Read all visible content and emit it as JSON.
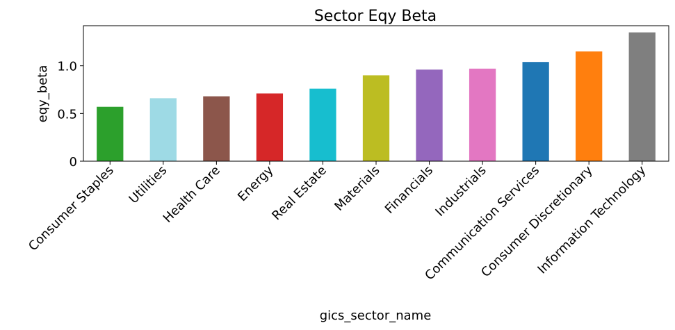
{
  "chart_data": {
    "type": "bar",
    "title": "Sector Eqy Beta",
    "x_label": "gics_sector_name",
    "y_label": "eqy_beta",
    "categories": [
      "Consumer Staples",
      "Utilities",
      "Health Care",
      "Energy",
      "Real Estate",
      "Materials",
      "Financials",
      "Industrials",
      "Communication Services",
      "Consumer Discretionary",
      "Information Technology"
    ],
    "values": [
      0.57,
      0.66,
      0.68,
      0.71,
      0.76,
      0.9,
      0.96,
      0.97,
      1.04,
      1.15,
      1.35
    ],
    "colors": [
      "#2ca02c",
      "#9edae5",
      "#8c564b",
      "#d62728",
      "#17becf",
      "#bcbd22",
      "#9467bd",
      "#e377c2",
      "#1f77b4",
      "#ff7f0e",
      "#7f7f7f"
    ],
    "ylim": [
      0,
      1.42
    ],
    "yticks": [
      0.0,
      {
        "value": 0.5,
        "label": "0.5"
      },
      {
        "value": 1.0,
        "label": "1.0"
      }
    ],
    "grid": false
  }
}
